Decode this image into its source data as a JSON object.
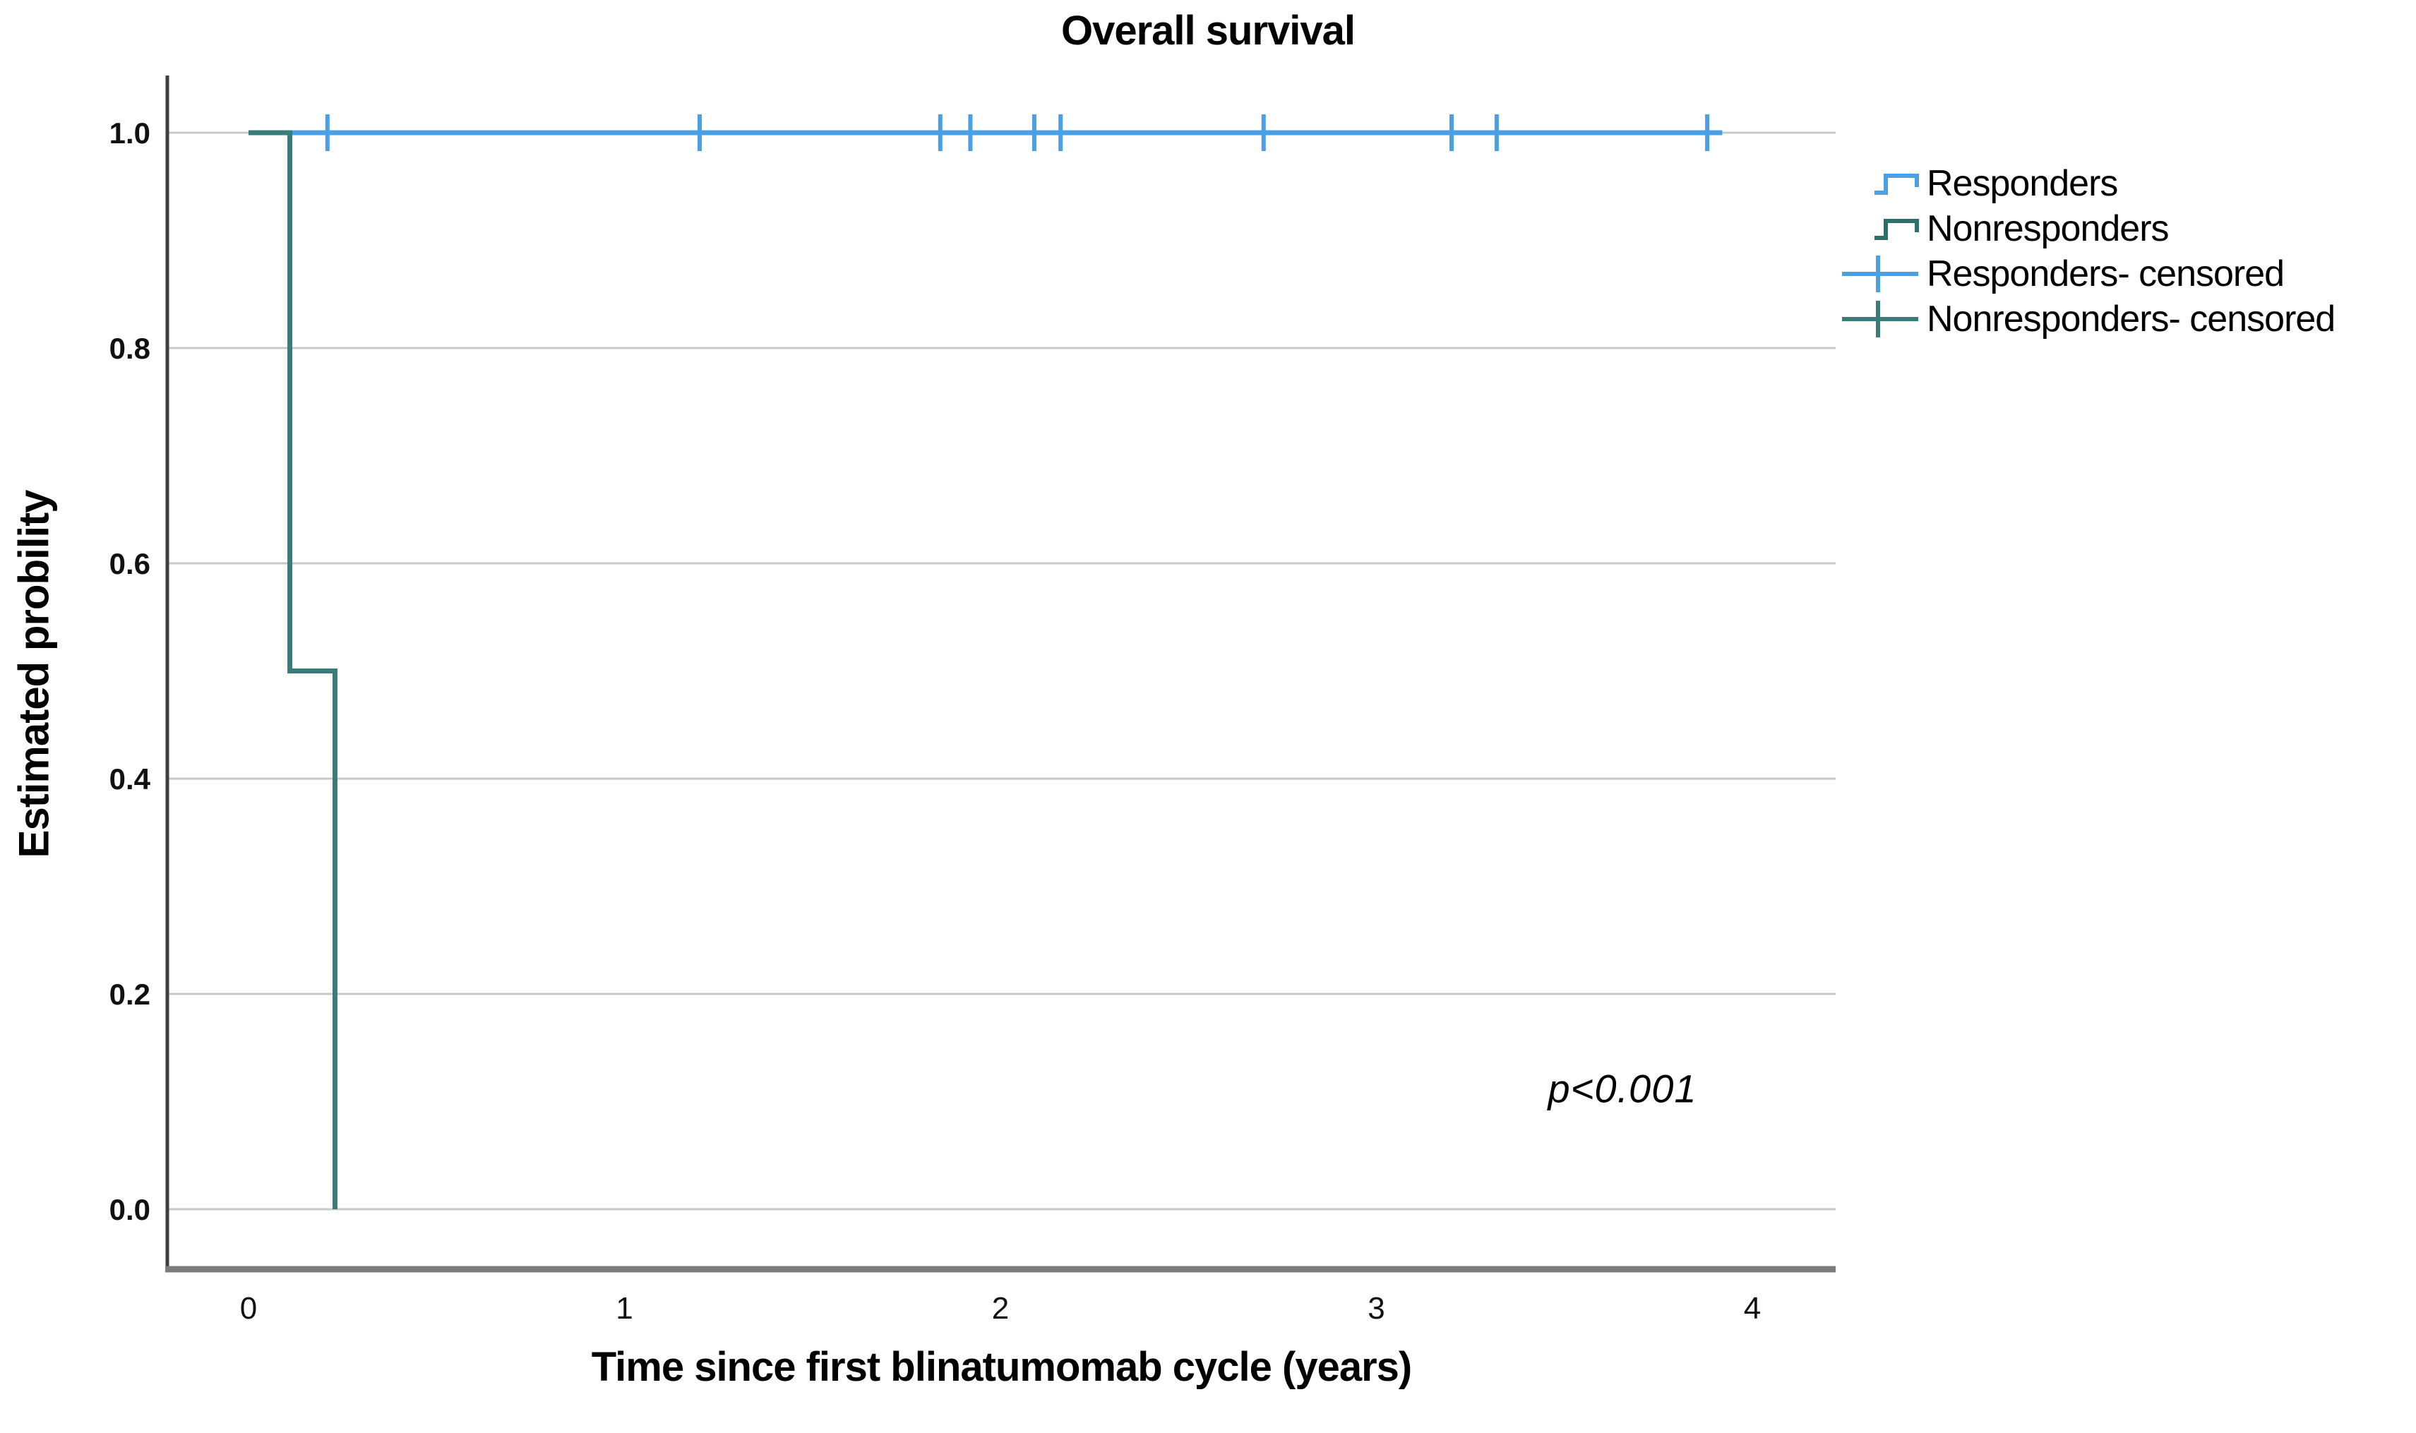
{
  "page": {
    "background": "#FFFFFF"
  },
  "chart_data": {
    "type": "line",
    "chart_style": "kaplan_meier_step_plot",
    "title": "Overall survival",
    "xlabel": "Time since first blinatumomab cycle (years)",
    "ylabel": "Estimated probility",
    "annotation": "p<0.001",
    "annotation_position": {
      "x": 3.65,
      "y": 0.11
    },
    "xlim": [
      -0.22,
      4.22
    ],
    "ylim": [
      0.0,
      1.0
    ],
    "x_ticks": [
      "0",
      "1",
      "2",
      "3",
      "4"
    ],
    "x_tick_values": [
      0,
      1,
      2,
      3,
      4
    ],
    "y_ticks": [
      "0.0",
      "0.2",
      "0.4",
      "0.6",
      "0.8",
      "1.0"
    ],
    "y_tick_values": [
      0,
      0.2,
      0.4,
      0.6,
      0.8,
      1.0
    ],
    "grid": "horizontal",
    "grid_color": "#C8C8C8",
    "legend_position": "right",
    "series": [
      {
        "name": "Responders",
        "color": "#4BA0E5",
        "step_points": [
          [
            0.0,
            1.0
          ],
          [
            3.92,
            1.0
          ]
        ],
        "censored_times": [
          0.21,
          1.2,
          1.84,
          1.92,
          2.09,
          2.16,
          2.7,
          3.2,
          3.32,
          3.88
        ],
        "censored_y": 1.0
      },
      {
        "name": "Nonresponders",
        "color": "#3A7C7C",
        "step_points": [
          [
            0.0,
            1.0
          ],
          [
            0.11,
            1.0
          ],
          [
            0.11,
            0.5
          ],
          [
            0.23,
            0.5
          ],
          [
            0.23,
            0.0
          ]
        ],
        "censored_times": [],
        "censored_y": null
      }
    ],
    "legend": [
      {
        "label": "Responders",
        "marker": "step",
        "color": "#4BA0E5"
      },
      {
        "label": "Nonresponders",
        "marker": "step",
        "color": "#2E6E6B"
      },
      {
        "label": "Responders- censored",
        "marker": "plus",
        "color": "#4BA0E5"
      },
      {
        "label": "Nonresponders- censored",
        "marker": "plus",
        "color": "#3A7C7C"
      }
    ]
  }
}
